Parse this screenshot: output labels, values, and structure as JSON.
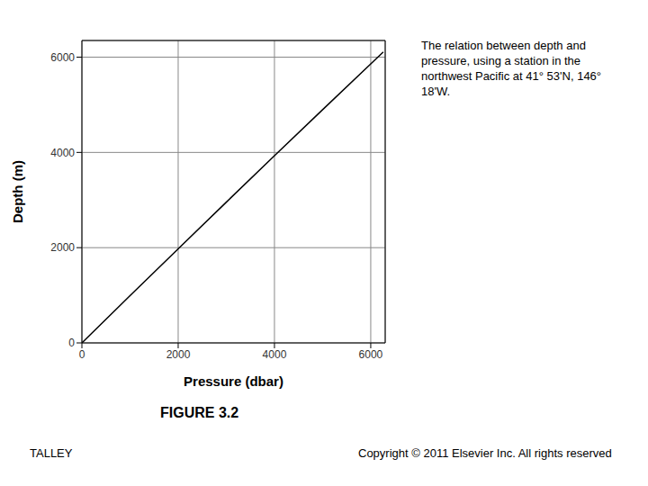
{
  "chart_data": {
    "type": "line",
    "title": "FIGURE 3.2",
    "annotation": "The relation between depth and pressure, using a station in the northwest Pacific at 41° 53'N, 146° 18'W.",
    "footer_left": "TALLEY",
    "footer_right": "Copyright © 2011 Elsevier Inc. All rights reserved",
    "x_label": "Pressure (dbar)",
    "y_label": "Depth (m)",
    "x": [
      0,
      1000,
      2000,
      3000,
      4000,
      5000,
      6000,
      6260
    ],
    "values": [
      0,
      991,
      1976,
      2956,
      3930,
      4897,
      5858,
      6110
    ],
    "color": "#000000",
    "xlim": [
      0,
      6300
    ],
    "xticks": [
      0,
      2000,
      4000,
      6000
    ],
    "ylim": [
      0,
      6350
    ],
    "yticks": [
      0,
      2000,
      4000,
      6000
    ],
    "grid": true
  }
}
